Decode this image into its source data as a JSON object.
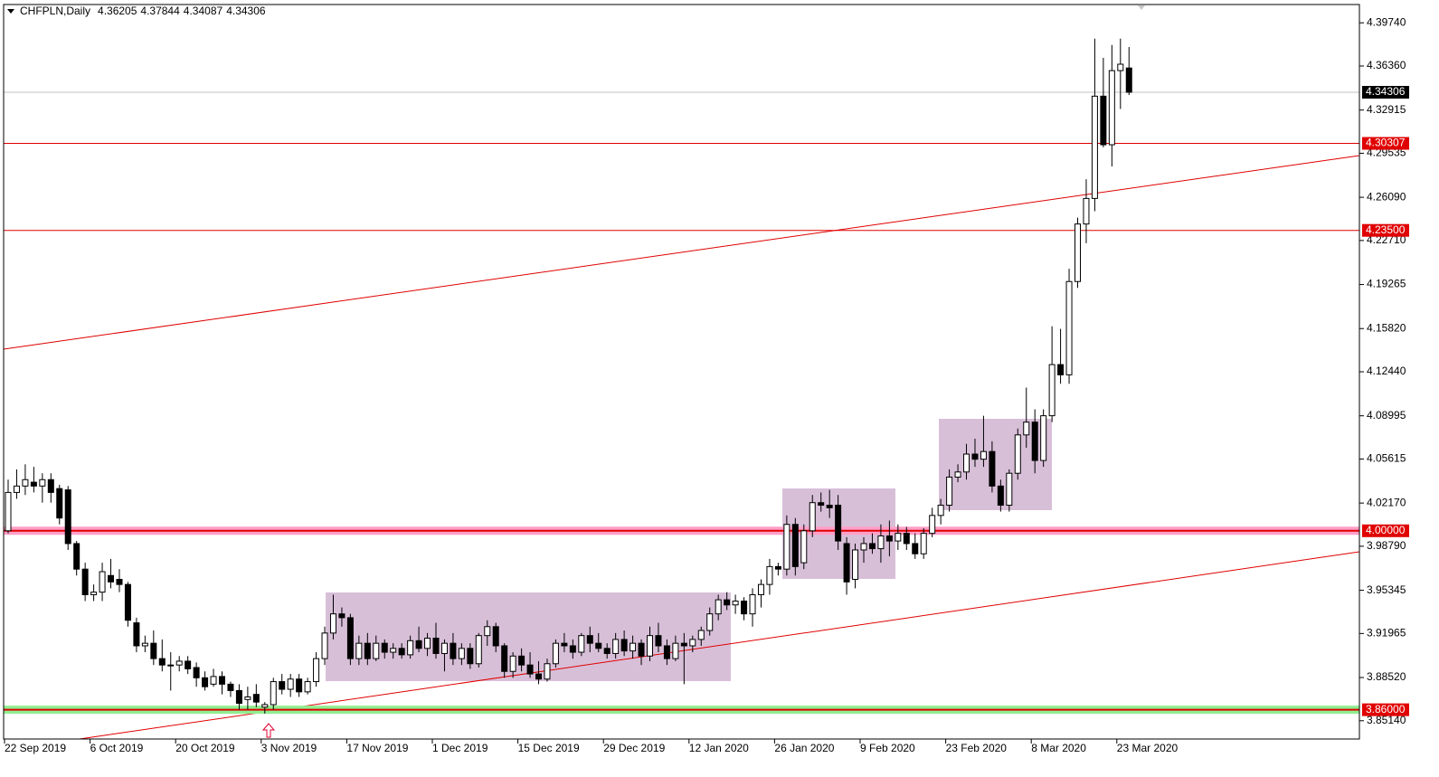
{
  "chart_data": {
    "type": "candlestick",
    "symbol": "CHFPLN,Daily",
    "categories": [
      "22 Sep 2019",
      null,
      null,
      null,
      null,
      null,
      null,
      null,
      null,
      null,
      "6 Oct 2019",
      null,
      null,
      null,
      null,
      null,
      null,
      null,
      null,
      null,
      "20 Oct 2019",
      null,
      null,
      null,
      null,
      null,
      null,
      null,
      null,
      null,
      "3 Nov 2019",
      null,
      null,
      null,
      null,
      null,
      null,
      null,
      null,
      null,
      "17 Nov 2019",
      null,
      null,
      null,
      null,
      null,
      null,
      null,
      null,
      null,
      "1 Dec 2019",
      null,
      null,
      null,
      null,
      null,
      null,
      null,
      null,
      null,
      "15 Dec 2019",
      null,
      null,
      null,
      null,
      null,
      null,
      null,
      null,
      null,
      "29 Dec 2019",
      null,
      null,
      null,
      null,
      null,
      null,
      null,
      null,
      null,
      "12 Jan 2020",
      null,
      null,
      null,
      null,
      null,
      null,
      null,
      null,
      null,
      "26 Jan 2020",
      null,
      null,
      null,
      null,
      null,
      null,
      null,
      null,
      null,
      "9 Feb 2020",
      null,
      null,
      null,
      null,
      null,
      null,
      null,
      null,
      null,
      "23 Feb 2020",
      null,
      null,
      null,
      null,
      null,
      null,
      null,
      null,
      null,
      "8 Mar 2020",
      null,
      null,
      null,
      null,
      null,
      null,
      null,
      null,
      null,
      "23 Mar 2020",
      null
    ],
    "open": [
      4.0,
      4.03,
      4.035,
      4.038,
      4.035,
      4.04,
      4.033,
      4.032,
      3.99,
      3.97,
      3.95,
      3.952,
      3.965,
      3.962,
      3.958,
      3.928,
      3.91,
      3.912,
      3.9,
      3.895,
      3.895,
      3.898,
      3.893,
      3.885,
      3.88,
      3.886,
      3.88,
      3.875,
      3.868,
      3.872,
      3.862,
      3.864,
      3.882,
      3.876,
      3.884,
      3.874,
      3.882,
      3.9,
      3.92,
      3.935,
      3.932,
      3.9,
      3.912,
      3.9,
      3.912,
      3.905,
      3.908,
      3.903,
      3.914,
      3.908,
      3.916,
      3.904,
      3.912,
      3.9,
      3.908,
      3.896,
      3.918,
      3.925,
      3.91,
      3.89,
      3.902,
      3.895,
      3.888,
      3.884,
      3.896,
      3.912,
      3.91,
      3.905,
      3.918,
      3.912,
      3.908,
      3.904,
      3.915,
      3.906,
      3.912,
      3.902,
      3.918,
      3.91,
      3.9,
      3.912,
      3.91,
      3.915,
      3.922,
      3.935,
      3.946,
      3.942,
      3.945,
      3.935,
      3.95,
      3.958,
      3.972,
      3.97,
      4.005,
      3.975,
      4.0,
      4.022,
      4.02,
      4.02,
      3.99,
      3.962,
      3.985,
      3.99,
      3.986,
      3.996,
      3.992,
      3.998,
      3.99,
      3.982,
      3.998,
      4.012,
      4.02,
      4.042,
      4.046,
      4.06,
      4.056,
      4.062,
      4.035,
      4.02,
      4.045,
      4.075,
      4.085,
      4.055,
      4.09,
      4.13,
      4.122,
      4.195,
      4.24,
      4.26,
      4.34,
      4.302,
      4.36,
      4.36205
    ],
    "high": [
      4.04,
      4.048,
      4.052,
      4.05,
      4.045,
      4.045,
      4.036,
      4.035,
      3.992,
      3.975,
      3.958,
      3.975,
      3.978,
      3.97,
      3.96,
      3.932,
      3.918,
      3.922,
      3.915,
      3.905,
      3.902,
      3.902,
      3.897,
      3.89,
      3.892,
      3.89,
      3.882,
      3.88,
      3.878,
      3.88,
      3.866,
      3.885,
      3.888,
      3.888,
      3.888,
      3.885,
      3.905,
      3.925,
      3.95,
      3.94,
      3.935,
      3.918,
      3.92,
      3.918,
      3.915,
      3.912,
      3.912,
      3.918,
      3.925,
      3.92,
      3.928,
      3.915,
      3.92,
      3.912,
      3.912,
      3.92,
      3.93,
      3.928,
      3.912,
      3.905,
      3.908,
      3.905,
      3.898,
      3.9,
      3.915,
      3.92,
      3.915,
      3.92,
      3.925,
      3.92,
      3.912,
      3.92,
      3.922,
      3.918,
      3.915,
      3.925,
      3.928,
      3.915,
      3.918,
      3.92,
      3.918,
      3.925,
      3.94,
      3.95,
      3.952,
      3.95,
      3.948,
      3.955,
      3.962,
      3.978,
      3.975,
      4.012,
      4.01,
      4.005,
      4.028,
      4.03,
      4.032,
      4.028,
      3.995,
      3.99,
      3.995,
      3.998,
      4.005,
      4.008,
      4.005,
      4.003,
      3.998,
      4.002,
      4.018,
      4.025,
      4.048,
      4.052,
      4.068,
      4.072,
      4.09,
      4.07,
      4.04,
      4.048,
      4.08,
      4.112,
      4.095,
      4.095,
      4.16,
      4.158,
      4.205,
      4.245,
      4.275,
      4.385,
      4.37,
      4.38,
      4.385,
      4.37844
    ],
    "low": [
      3.998,
      4.025,
      4.028,
      4.03,
      4.022,
      4.022,
      4.005,
      3.985,
      3.965,
      3.945,
      3.945,
      3.945,
      3.955,
      3.952,
      3.925,
      3.905,
      3.905,
      3.895,
      3.89,
      3.875,
      3.89,
      3.888,
      3.878,
      3.875,
      3.878,
      3.872,
      3.87,
      3.86,
      3.86,
      3.862,
      3.857,
      3.86,
      3.872,
      3.87,
      3.87,
      3.872,
      3.878,
      3.895,
      3.915,
      3.925,
      3.895,
      3.895,
      3.895,
      3.898,
      3.9,
      3.9,
      3.9,
      3.9,
      3.905,
      3.902,
      3.9,
      3.89,
      3.895,
      3.895,
      3.892,
      3.893,
      3.91,
      3.905,
      3.885,
      3.885,
      3.89,
      3.885,
      3.88,
      3.882,
      3.893,
      3.905,
      3.9,
      3.902,
      3.905,
      3.905,
      3.9,
      3.9,
      3.902,
      3.9,
      3.895,
      3.898,
      3.905,
      3.895,
      3.898,
      3.88,
      3.905,
      3.91,
      3.918,
      3.93,
      3.938,
      3.935,
      3.93,
      3.925,
      3.94,
      3.95,
      3.965,
      3.965,
      3.965,
      3.97,
      3.995,
      4.015,
      4.01,
      3.985,
      3.95,
      3.955,
      3.975,
      3.982,
      3.975,
      3.98,
      3.985,
      3.985,
      3.978,
      3.978,
      3.995,
      4.005,
      4.015,
      4.038,
      4.04,
      4.05,
      4.05,
      4.03,
      4.015,
      4.015,
      4.04,
      4.065,
      4.045,
      4.05,
      4.085,
      4.115,
      4.115,
      4.19,
      4.225,
      4.25,
      4.3,
      4.285,
      4.33,
      4.34087
    ],
    "close": [
      4.03,
      4.035,
      4.04,
      4.035,
      4.04,
      4.03,
      4.01,
      3.99,
      3.97,
      3.95,
      3.952,
      3.968,
      3.96,
      3.958,
      3.93,
      3.91,
      3.912,
      3.9,
      3.895,
      3.895,
      3.898,
      3.892,
      3.885,
      3.878,
      3.886,
      3.88,
      3.875,
      3.865,
      3.87,
      3.866,
      3.864,
      3.882,
      3.876,
      3.884,
      3.874,
      3.882,
      3.9,
      3.92,
      3.935,
      3.932,
      3.9,
      3.912,
      3.9,
      3.912,
      3.905,
      3.908,
      3.903,
      3.914,
      3.908,
      3.916,
      3.904,
      3.912,
      3.9,
      3.908,
      3.896,
      3.918,
      3.925,
      3.91,
      3.89,
      3.902,
      3.895,
      3.888,
      3.884,
      3.896,
      3.912,
      3.91,
      3.905,
      3.918,
      3.912,
      3.908,
      3.904,
      3.915,
      3.906,
      3.912,
      3.902,
      3.918,
      3.91,
      3.9,
      3.912,
      3.91,
      3.915,
      3.922,
      3.935,
      3.946,
      3.942,
      3.945,
      3.935,
      3.95,
      3.958,
      3.972,
      3.97,
      4.005,
      3.972,
      4.0,
      4.022,
      4.02,
      4.018,
      3.992,
      3.96,
      3.985,
      3.99,
      3.986,
      3.996,
      3.992,
      3.998,
      3.99,
      3.982,
      3.998,
      4.012,
      4.02,
      4.042,
      4.046,
      4.06,
      4.056,
      4.062,
      4.035,
      4.02,
      4.045,
      4.075,
      4.085,
      4.055,
      4.09,
      4.13,
      4.122,
      4.195,
      4.24,
      4.26,
      4.34,
      4.302,
      4.36,
      4.365,
      4.34306
    ],
    "up_color": "#ffffff",
    "down_color": "#000000",
    "ylim": [
      3.8371,
      4.4117
    ],
    "yticks": [
      {
        "value": 4.3974,
        "label": "4.39740"
      },
      {
        "value": 4.3636,
        "label": "4.36360"
      },
      {
        "value": 4.32915,
        "label": "4.32915"
      },
      {
        "value": 4.29535,
        "label": "4.29535"
      },
      {
        "value": 4.2609,
        "label": "4.26090"
      },
      {
        "value": 4.2271,
        "label": "4.22710"
      },
      {
        "value": 4.19265,
        "label": "4.19265"
      },
      {
        "value": 4.1582,
        "label": "4.15820"
      },
      {
        "value": 4.1244,
        "label": "4.12440"
      },
      {
        "value": 4.08995,
        "label": "4.08995"
      },
      {
        "value": 4.05615,
        "label": "4.05615"
      },
      {
        "value": 4.0217,
        "label": "4.02170"
      },
      {
        "value": 3.9879,
        "label": "3.98790"
      },
      {
        "value": 3.95345,
        "label": "3.95345"
      },
      {
        "value": 3.91965,
        "label": "3.91965"
      },
      {
        "value": 3.8852,
        "label": "3.88520"
      },
      {
        "value": 3.8514,
        "label": "3.85140"
      }
    ],
    "levels": [
      {
        "value": 4.34306,
        "label": "4.34306",
        "color": "#c0c0c0",
        "label_color": "#000000"
      },
      {
        "value": 4.30307,
        "label": "4.30307",
        "color": "#e00000",
        "label_color": "#e00000"
      },
      {
        "value": 4.235,
        "label": "4.23500",
        "color": "#e00000",
        "label_color": "#e00000"
      },
      {
        "value": 4.0,
        "label": "4.00000",
        "color": "#e00000",
        "label_color": "#e00000",
        "band_color": "#ff9fc8"
      },
      {
        "value": 3.86,
        "label": "3.86000",
        "color": "#e00000",
        "label_color": "#e00000",
        "band_color": "#90ee90"
      }
    ]
  }
}
